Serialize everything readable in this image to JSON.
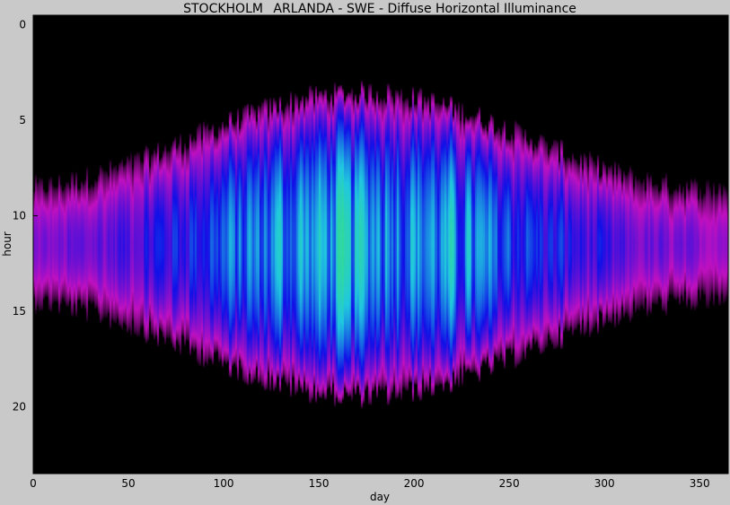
{
  "chart_data": {
    "type": "heatmap",
    "title": "STOCKHOLM_ ARLANDA - SWE - Diffuse Horizontal Illuminance",
    "xlabel": "day",
    "ylabel": "hour",
    "xlim": [
      0,
      365
    ],
    "ylim": [
      23.5,
      -0.5
    ],
    "x_ticks": [
      0,
      50,
      100,
      150,
      200,
      250,
      300,
      350
    ],
    "y_ticks": [
      0,
      5,
      10,
      15,
      20
    ],
    "x_tick_labels": [
      "0",
      "50",
      "100",
      "150",
      "200",
      "250",
      "300",
      "350"
    ],
    "y_tick_labels": [
      "0",
      "5",
      "10",
      "15",
      "20"
    ],
    "grid": false,
    "colormap": [
      "#000000",
      "#c010c0",
      "#1010e8",
      "#20c8e0",
      "#30d8a0"
    ],
    "value_range": [
      0,
      1
    ],
    "pattern": {
      "solar_noon_hour": 11.5,
      "daylight_hours_winter": 6,
      "daylight_hours_summer": 16,
      "peak_day": 172,
      "peak_relative_intensity": 0.9
    }
  }
}
